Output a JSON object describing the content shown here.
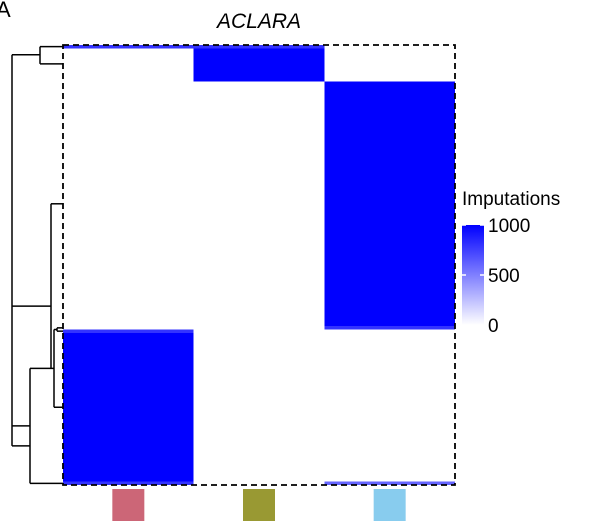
{
  "panel_label": "A",
  "chart_data": {
    "type": "heatmap",
    "title": "ACLARA",
    "columns": [
      {
        "color": "#cc6677"
      },
      {
        "color": "#999933"
      },
      {
        "color": "#88ccee"
      }
    ],
    "row_blocks": [
      {
        "rows": 1,
        "values": [
          800,
          800,
          0
        ]
      },
      {
        "rows": 10,
        "values": [
          0,
          1000,
          0
        ]
      },
      {
        "rows": 74,
        "values": [
          0,
          0,
          1000
        ]
      },
      {
        "rows": 1,
        "values": [
          0,
          0,
          800
        ]
      },
      {
        "rows": 1,
        "values": [
          800,
          0,
          0
        ]
      },
      {
        "rows": 45,
        "values": [
          1000,
          0,
          0
        ]
      },
      {
        "rows": 1,
        "values": [
          800,
          0,
          600
        ]
      }
    ],
    "scale": {
      "min": 0,
      "max": 1000,
      "low_color": "#ffffff",
      "high_color": "#0000ff"
    },
    "legend": {
      "title": "Imputations",
      "ticks": [
        {
          "value": 1000,
          "label": "1000"
        },
        {
          "value": 500,
          "label": "500"
        },
        {
          "value": 0,
          "label": "0"
        }
      ]
    },
    "row_dendrogram": true,
    "border_style": "dashed"
  }
}
